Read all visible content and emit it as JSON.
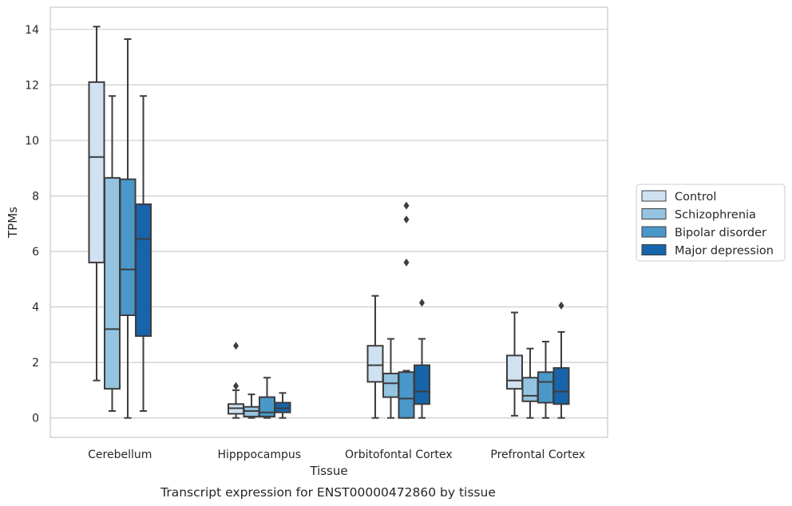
{
  "chart_data": {
    "type": "box",
    "ylabel": "TPMs",
    "xlabel": "Tissue",
    "caption": "Transcript expression for ENST00000472860 by tissue",
    "ylim": [
      -0.7,
      14.8
    ],
    "yticks": [
      0,
      2,
      4,
      6,
      8,
      10,
      12,
      14
    ],
    "grid": true,
    "legend_position": "right",
    "categories": [
      "Cerebellum",
      "Hipppocampus",
      "Orbitofontal Cortex",
      "Prefrontal Cortex"
    ],
    "series": [
      {
        "name": "Control",
        "color": "#d0e1f2",
        "boxes": [
          {
            "whisker_low": 1.35,
            "q1": 5.6,
            "median": 9.4,
            "q3": 12.1,
            "whisker_high": 14.1,
            "outliers": []
          },
          {
            "whisker_low": 0.0,
            "q1": 0.15,
            "median": 0.35,
            "q3": 0.5,
            "whisker_high": 1.0,
            "outliers": [
              2.6,
              1.15
            ]
          },
          {
            "whisker_low": 0.0,
            "q1": 1.3,
            "median": 1.9,
            "q3": 2.6,
            "whisker_high": 4.4,
            "outliers": []
          },
          {
            "whisker_low": 0.08,
            "q1": 1.05,
            "median": 1.35,
            "q3": 2.25,
            "whisker_high": 3.8,
            "outliers": []
          }
        ]
      },
      {
        "name": "Schizophrenia",
        "color": "#94c4df",
        "boxes": [
          {
            "whisker_low": 0.25,
            "q1": 1.05,
            "median": 3.2,
            "q3": 8.65,
            "whisker_high": 11.6,
            "outliers": []
          },
          {
            "whisker_low": 0.0,
            "q1": 0.05,
            "median": 0.25,
            "q3": 0.4,
            "whisker_high": 0.85,
            "outliers": []
          },
          {
            "whisker_low": 0.0,
            "q1": 0.75,
            "median": 1.25,
            "q3": 1.6,
            "whisker_high": 2.85,
            "outliers": []
          },
          {
            "whisker_low": 0.0,
            "q1": 0.6,
            "median": 0.8,
            "q3": 1.45,
            "whisker_high": 2.5,
            "outliers": []
          }
        ]
      },
      {
        "name": "Bipolar disorder",
        "color": "#4a98c9",
        "boxes": [
          {
            "whisker_low": 0.0,
            "q1": 3.7,
            "median": 5.35,
            "q3": 8.6,
            "whisker_high": 13.65,
            "outliers": []
          },
          {
            "whisker_low": 0.0,
            "q1": 0.05,
            "median": 0.2,
            "q3": 0.75,
            "whisker_high": 1.45,
            "outliers": []
          },
          {
            "whisker_low": 0.0,
            "q1": 0.0,
            "median": 0.7,
            "q3": 1.65,
            "whisker_high": 1.7,
            "outliers": [
              7.65,
              7.15,
              5.6
            ]
          },
          {
            "whisker_low": 0.0,
            "q1": 0.55,
            "median": 1.3,
            "q3": 1.65,
            "whisker_high": 2.75,
            "outliers": []
          }
        ]
      },
      {
        "name": "Major depression",
        "color": "#1764ab",
        "boxes": [
          {
            "whisker_low": 0.25,
            "q1": 2.95,
            "median": 6.45,
            "q3": 7.7,
            "whisker_high": 11.6,
            "outliers": []
          },
          {
            "whisker_low": 0.0,
            "q1": 0.2,
            "median": 0.35,
            "q3": 0.55,
            "whisker_high": 0.9,
            "outliers": []
          },
          {
            "whisker_low": 0.0,
            "q1": 0.5,
            "median": 0.95,
            "q3": 1.9,
            "whisker_high": 2.85,
            "outliers": [
              4.15
            ]
          },
          {
            "whisker_low": 0.0,
            "q1": 0.5,
            "median": 0.95,
            "q3": 1.8,
            "whisker_high": 3.1,
            "outliers": [
              4.05
            ]
          }
        ]
      }
    ]
  }
}
